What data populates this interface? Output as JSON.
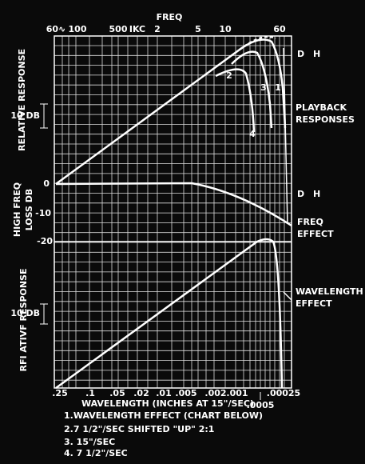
{
  "header": {
    "title": "FREQ"
  },
  "top_axis": {
    "labels": [
      "60∿",
      "100",
      "500",
      "IKC",
      "2",
      "5",
      "10",
      "60"
    ]
  },
  "bottom_axis": {
    "labels": [
      ".25",
      ".1",
      ".05",
      ".02",
      ".01",
      ".005",
      ".002",
      ".001",
      ".00025",
      ".0005"
    ],
    "title": "WAVELENGTH (INCHES AT 15\"/SEC)"
  },
  "left": {
    "relative_response": "RELATIVE RESPONSE",
    "scale_top": "10 DB",
    "zero": "0",
    "minus10": "-10",
    "minus20": "-20",
    "loss_line1": "HIGH FREQ",
    "loss_line2": "LOSS DB",
    "rel_response2": "RFI ATIVF RESPONSE",
    "scale_bottom": "10 DB"
  },
  "right": {
    "d_top": "D",
    "h_top": "H",
    "playback1": "PLAYBACK",
    "playback2": "RESPONSES",
    "d_mid": "D",
    "h_mid": "H",
    "freq1": "FREQ",
    "freq2": "EFFECT",
    "wave1": "WAVELENGTH",
    "wave2": "EFFECT"
  },
  "curve_labels": [
    "1",
    "2",
    "3",
    "4"
  ],
  "legend": [
    "1.WAVELENGTH  EFFECT (CHART BELOW)",
    "2.7 1/2\"/SEC SHIFTED \"UP\" 2:1",
    "3. 15\"/SEC",
    "4. 7 1/2\"/SEC"
  ]
}
